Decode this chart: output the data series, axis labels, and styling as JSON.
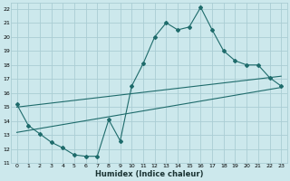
{
  "xlabel": "Humidex (Indice chaleur)",
  "bg_color": "#cce8ec",
  "grid_color": "#aacdd4",
  "line_color": "#1e6b6b",
  "xlim": [
    -0.5,
    23.5
  ],
  "ylim": [
    11,
    22.4
  ],
  "xticks": [
    0,
    1,
    2,
    3,
    4,
    5,
    6,
    7,
    8,
    9,
    10,
    11,
    12,
    13,
    14,
    15,
    16,
    17,
    18,
    19,
    20,
    21,
    22,
    23
  ],
  "yticks": [
    11,
    12,
    13,
    14,
    15,
    16,
    17,
    18,
    19,
    20,
    21,
    22
  ],
  "curve1_x": [
    0,
    1,
    2,
    3,
    4,
    5,
    6,
    7,
    8,
    9,
    10,
    11,
    12,
    13,
    14,
    15,
    16,
    17,
    18,
    19,
    20,
    21,
    22,
    23
  ],
  "curve1_y": [
    15.2,
    13.7,
    13.1,
    12.5,
    12.1,
    11.6,
    11.5,
    11.5,
    14.1,
    12.6,
    16.5,
    18.1,
    20.0,
    21.0,
    20.5,
    20.7,
    22.1,
    20.5,
    19.0,
    18.3,
    18.0,
    18.0,
    17.1,
    16.5
  ],
  "curve2_x": [
    0,
    23
  ],
  "curve2_y": [
    15.0,
    17.2
  ],
  "curve3_x": [
    0,
    23
  ],
  "curve3_y": [
    13.2,
    16.4
  ]
}
